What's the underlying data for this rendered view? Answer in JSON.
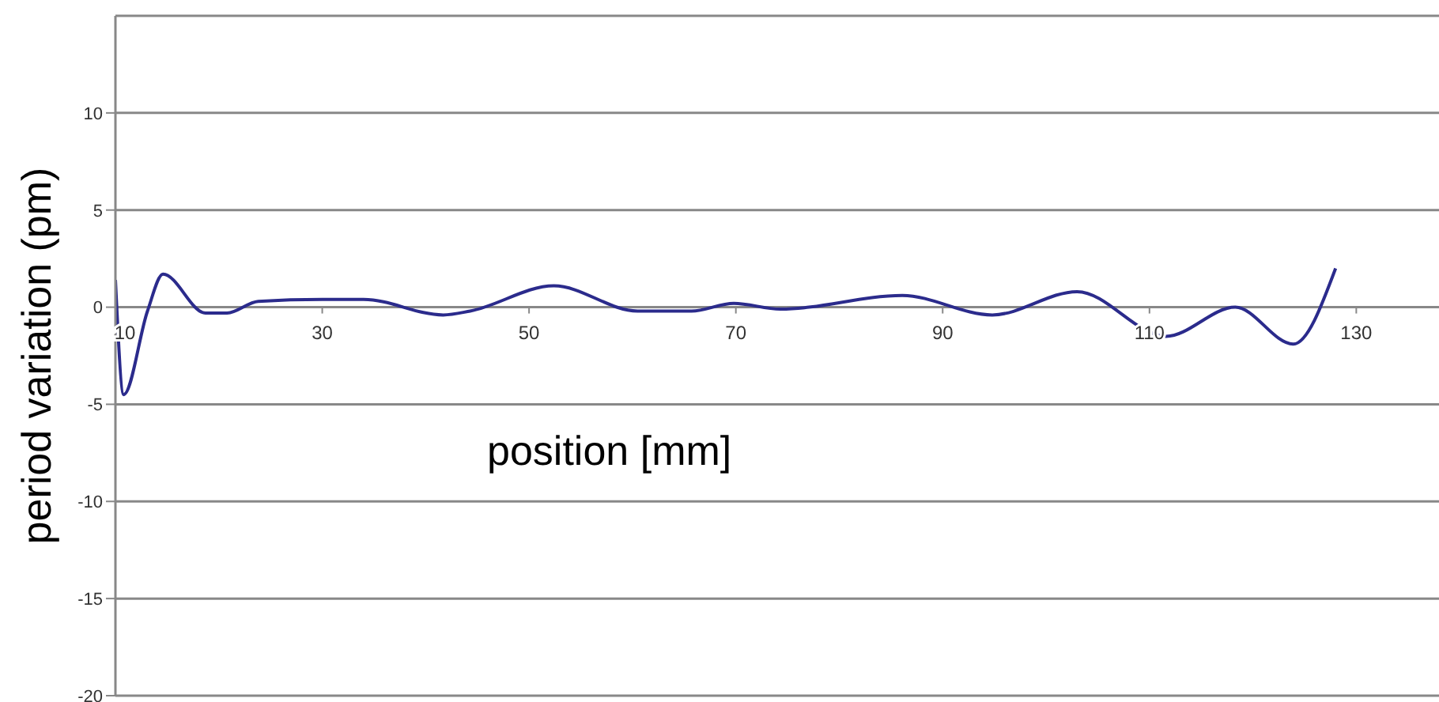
{
  "chart_data": {
    "type": "line",
    "xlabel": "position [mm]",
    "ylabel": "period variation (pm)",
    "x": [
      10,
      10.8,
      13.1,
      14.6,
      18.7,
      20.8,
      23.8,
      30,
      34,
      41.7,
      44.3,
      52.4,
      60.5,
      65.7,
      69.8,
      74.3,
      86.1,
      94.8,
      103,
      111.6,
      118.3,
      123.9,
      128
    ],
    "series": [
      {
        "color": "#2b2b8c",
        "values": [
          1.4,
          -4.5,
          -0.2,
          1.7,
          -0.3,
          -0.3,
          0.3,
          0.4,
          0.4,
          -0.4,
          -0.2,
          1.1,
          -0.2,
          -0.2,
          0.2,
          -0.1,
          0.6,
          -0.4,
          0.8,
          -1.5,
          0,
          -1.9,
          2.0
        ]
      }
    ],
    "xlim": [
      10,
      138
    ],
    "xticks": [
      10,
      30,
      50,
      70,
      90,
      110,
      130
    ],
    "ylim": [
      -20,
      15
    ],
    "yticks": [
      -20,
      -15,
      -10,
      -5,
      0,
      5,
      10
    ],
    "grid": "y",
    "legend": false
  }
}
